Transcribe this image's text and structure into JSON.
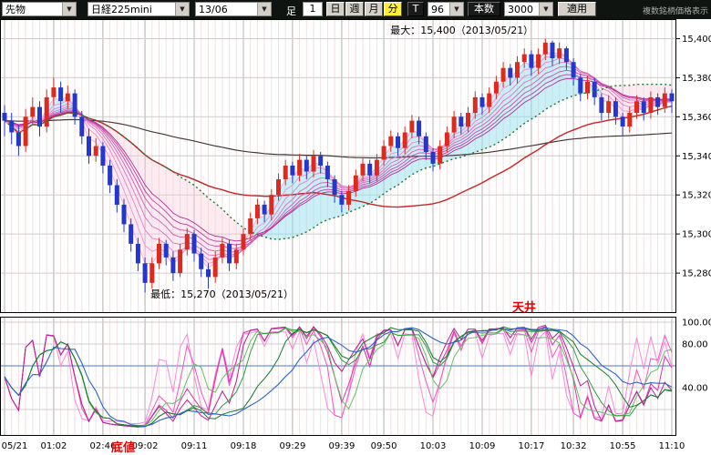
{
  "toolbar": {
    "instrument_type": "先物",
    "instrument": "日経225mini",
    "contract_month": "13/06",
    "bar_label": "足",
    "minute_value": "1",
    "period_day": "日",
    "period_week": "週",
    "period_month": "月",
    "period_minute": "分",
    "tick_button": "T",
    "tick_interval": "96",
    "bars_label": "本数",
    "bars_count": "3000",
    "apply_button": "適用",
    "top_right_text": "複数銘柄価格表示"
  },
  "chart_data": {
    "type": "candlestick",
    "price_axis": {
      "min": 15260,
      "max": 15410,
      "ticks": [
        {
          "label": "15,400",
          "value": 15400
        },
        {
          "label": "15,380",
          "value": 15380
        },
        {
          "label": "15,360",
          "value": 15360
        },
        {
          "label": "15,340",
          "value": 15340
        },
        {
          "label": "15,320",
          "value": 15320
        },
        {
          "label": "15,300",
          "value": 15300
        },
        {
          "label": "15,280",
          "value": 15280
        }
      ]
    },
    "osc_axis": {
      "grid": [
        100,
        80,
        60,
        40,
        20
      ],
      "ticks": [
        {
          "label": "100.00",
          "value": 100
        },
        {
          "label": "80.00",
          "value": 80
        },
        {
          "label": "40.00",
          "value": 40
        }
      ]
    },
    "time_ticks": [
      {
        "label": "05/21",
        "bar": 0
      },
      {
        "label": "01:02",
        "bar": 7
      },
      {
        "label": "02:46",
        "bar": 14
      },
      {
        "label": "09:02",
        "bar": 20
      },
      {
        "label": "09:11",
        "bar": 27
      },
      {
        "label": "09:18",
        "bar": 34
      },
      {
        "label": "09:29",
        "bar": 41
      },
      {
        "label": "09:39",
        "bar": 48
      },
      {
        "label": "09:50",
        "bar": 54
      },
      {
        "label": "10:03",
        "bar": 61
      },
      {
        "label": "10:09",
        "bar": 68
      },
      {
        "label": "10:17",
        "bar": 75
      },
      {
        "label": "10:32",
        "bar": 81
      },
      {
        "label": "10:55",
        "bar": 88
      },
      {
        "label": "11:10",
        "bar": 95
      }
    ],
    "annotations": {
      "high": {
        "text": "最大：15,400（2013/05/21）",
        "price": 15400,
        "bar": 77
      },
      "low": {
        "text": "最低：15,270（2013/05/21）",
        "price": 15270,
        "bar": 20
      },
      "ceiling": {
        "text": "天井",
        "color": "#e60000"
      },
      "bottom": {
        "text": "底値",
        "color": "#e60000"
      }
    },
    "colors": {
      "up": "#dd2a1e",
      "down": "#2337cd",
      "grid_v": "#f2e0e0",
      "grid_tick": "#bcb0b0",
      "grid_h": "#cccccc"
    },
    "overlays": {
      "ribbon": {
        "periods": [
          3,
          5,
          7,
          9,
          11,
          13,
          15,
          17
        ],
        "color_from": "#ffa0e0",
        "color_to": "#b52b96"
      },
      "band": {
        "fast_ema": 3,
        "slow_sma": 25,
        "up_fill": "rgba(150,224,238,0.5)",
        "down_fill": "rgba(248,205,221,0.38)"
      },
      "sma_green": {
        "period": 25,
        "color": "#1a7a2e",
        "dash": "2,3"
      },
      "sma_red": {
        "period": 45,
        "color": "#cc2323"
      },
      "ema_dark": {
        "period": 150,
        "color": "#4a3838"
      }
    },
    "oscillator": {
      "magenta": [
        {
          "n": 5,
          "color": "#ff85d8"
        },
        {
          "n": 9,
          "color": "#f055c2"
        },
        {
          "n": 13,
          "color": "#dc32ac"
        },
        {
          "n": 17,
          "color": "#b81f92"
        }
      ],
      "green": [
        {
          "n": 9,
          "smooth": 3,
          "color": "#63c063"
        },
        {
          "n": 17,
          "smooth": 3,
          "color": "#2f9e3f"
        },
        {
          "n": 25,
          "smooth": 3,
          "color": "#147a30"
        }
      ],
      "blue": {
        "n": 30,
        "smooth": 5,
        "color": "#2b63cc"
      },
      "ref_line": {
        "value": 60,
        "color": "#4a79d8"
      }
    },
    "candles": [
      [
        15362,
        15366,
        15350,
        15358
      ],
      [
        15358,
        15362,
        15346,
        15352
      ],
      [
        15352,
        15356,
        15340,
        15345
      ],
      [
        15345,
        15364,
        15342,
        15360
      ],
      [
        15360,
        15370,
        15356,
        15365
      ],
      [
        15365,
        15368,
        15350,
        15355
      ],
      [
        15355,
        15374,
        15352,
        15370
      ],
      [
        15370,
        15380,
        15366,
        15375
      ],
      [
        15375,
        15378,
        15362,
        15368
      ],
      [
        15368,
        15376,
        15364,
        15372
      ],
      [
        15372,
        15374,
        15356,
        15360
      ],
      [
        15360,
        15363,
        15346,
        15350
      ],
      [
        15350,
        15354,
        15336,
        15340
      ],
      [
        15340,
        15349,
        15337,
        15345
      ],
      [
        15345,
        15347,
        15331,
        15335
      ],
      [
        15335,
        15338,
        15321,
        15325
      ],
      [
        15325,
        15328,
        15311,
        15315
      ],
      [
        15315,
        15318,
        15301,
        15305
      ],
      [
        15305,
        15308,
        15291,
        15295
      ],
      [
        15295,
        15298,
        15281,
        15285
      ],
      [
        15285,
        15288,
        15270,
        15275
      ],
      [
        15275,
        15288,
        15272,
        15285
      ],
      [
        15285,
        15298,
        15282,
        15295
      ],
      [
        15295,
        15297,
        15284,
        15288
      ],
      [
        15288,
        15291,
        15276,
        15280
      ],
      [
        15280,
        15295,
        15278,
        15292
      ],
      [
        15292,
        15303,
        15289,
        15300
      ],
      [
        15300,
        15302,
        15286,
        15290
      ],
      [
        15290,
        15293,
        15278,
        15282
      ],
      [
        15282,
        15285,
        15272,
        15278
      ],
      [
        15278,
        15291,
        15275,
        15288
      ],
      [
        15288,
        15298,
        15285,
        15295
      ],
      [
        15295,
        15297,
        15281,
        15285
      ],
      [
        15285,
        15295,
        15282,
        15292
      ],
      [
        15292,
        15303,
        15289,
        15300
      ],
      [
        15300,
        15311,
        15297,
        15308
      ],
      [
        15308,
        15318,
        15305,
        15315
      ],
      [
        15315,
        15317,
        15306,
        15310
      ],
      [
        15310,
        15323,
        15307,
        15320
      ],
      [
        15320,
        15331,
        15317,
        15328
      ],
      [
        15328,
        15338,
        15325,
        15335
      ],
      [
        15335,
        15337,
        15326,
        15330
      ],
      [
        15330,
        15341,
        15327,
        15338
      ],
      [
        15338,
        15340,
        15328,
        15332
      ],
      [
        15332,
        15343,
        15329,
        15340
      ],
      [
        15340,
        15342,
        15331,
        15335
      ],
      [
        15335,
        15337,
        15324,
        15328
      ],
      [
        15328,
        15330,
        15316,
        15320
      ],
      [
        15320,
        15322,
        15311,
        15315
      ],
      [
        15315,
        15325,
        15312,
        15322
      ],
      [
        15322,
        15333,
        15319,
        15330
      ],
      [
        15330,
        15339,
        15327,
        15336
      ],
      [
        15336,
        15338,
        15326,
        15330
      ],
      [
        15330,
        15341,
        15327,
        15338
      ],
      [
        15338,
        15348,
        15335,
        15345
      ],
      [
        15345,
        15353,
        15342,
        15350
      ],
      [
        15350,
        15352,
        15340,
        15344
      ],
      [
        15344,
        15355,
        15341,
        15352
      ],
      [
        15352,
        15361,
        15349,
        15358
      ],
      [
        15358,
        15360,
        15346,
        15350
      ],
      [
        15350,
        15352,
        15338,
        15342
      ],
      [
        15342,
        15344,
        15332,
        15336
      ],
      [
        15336,
        15348,
        15333,
        15345
      ],
      [
        15345,
        15355,
        15342,
        15352
      ],
      [
        15352,
        15363,
        15349,
        15360
      ],
      [
        15360,
        15362,
        15351,
        15355
      ],
      [
        15355,
        15365,
        15352,
        15362
      ],
      [
        15362,
        15373,
        15359,
        15370
      ],
      [
        15370,
        15372,
        15361,
        15365
      ],
      [
        15365,
        15375,
        15362,
        15372
      ],
      [
        15372,
        15381,
        15369,
        15378
      ],
      [
        15378,
        15388,
        15375,
        15385
      ],
      [
        15385,
        15387,
        15376,
        15380
      ],
      [
        15380,
        15391,
        15377,
        15388
      ],
      [
        15388,
        15395,
        15385,
        15392
      ],
      [
        15392,
        15394,
        15381,
        15385
      ],
      [
        15385,
        15395,
        15382,
        15392
      ],
      [
        15392,
        15400,
        15389,
        15398
      ],
      [
        15398,
        15399,
        15386,
        15390
      ],
      [
        15390,
        15398,
        15387,
        15395
      ],
      [
        15395,
        15396,
        15384,
        15388
      ],
      [
        15388,
        15390,
        15376,
        15380
      ],
      [
        15380,
        15382,
        15368,
        15372
      ],
      [
        15372,
        15381,
        15369,
        15378
      ],
      [
        15378,
        15380,
        15366,
        15370
      ],
      [
        15370,
        15372,
        15358,
        15362
      ],
      [
        15362,
        15371,
        15359,
        15368
      ],
      [
        15368,
        15370,
        15356,
        15360
      ],
      [
        15360,
        15362,
        15350,
        15355
      ],
      [
        15355,
        15365,
        15352,
        15362
      ],
      [
        15362,
        15371,
        15359,
        15368
      ],
      [
        15368,
        15370,
        15358,
        15362
      ],
      [
        15362,
        15373,
        15359,
        15370
      ],
      [
        15370,
        15372,
        15361,
        15365
      ],
      [
        15365,
        15375,
        15362,
        15372
      ],
      [
        15372,
        15374,
        15362,
        15368
      ]
    ]
  }
}
